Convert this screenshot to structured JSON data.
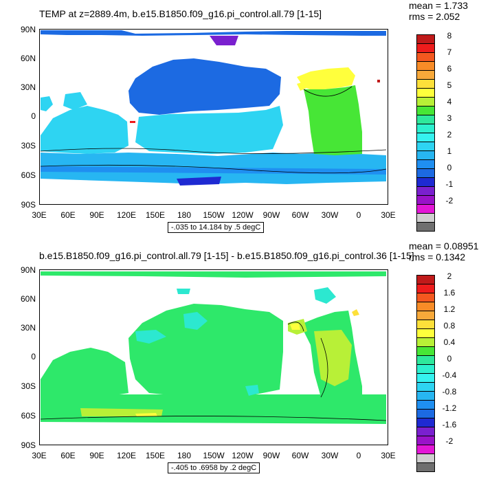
{
  "panels": [
    {
      "title": "TEMP at z=2889.4m, b.e15.B1850.f09_g16.pi_control.all.79 [1-15]",
      "mean": "mean = 1.733",
      "rms": "rms = 2.052",
      "contour_info": "-.035 to 14.184 by .5 degC",
      "lat_labels": [
        "90N",
        "60N",
        "30N",
        "0",
        "30S",
        "60S",
        "90S"
      ],
      "lon_labels": [
        "30E",
        "60E",
        "90E",
        "120E",
        "150E",
        "180",
        "150W",
        "120W",
        "90W",
        "60W",
        "30W",
        "0",
        "30E"
      ],
      "colorbar_labels": [
        "8",
        "7",
        "6",
        "5",
        "4",
        "3",
        "2",
        "1",
        "0",
        "-1",
        "-2"
      ],
      "colorbar_colors": [
        "#c01a1a",
        "#ee1c1c",
        "#f4581f",
        "#f88c27",
        "#f8a93a",
        "#fde03a",
        "#ffff3c",
        "#b8f037",
        "#47e636",
        "#2ee89c",
        "#2cf0cf",
        "#35f2f0",
        "#2ed4f2",
        "#27b6f2",
        "#1f8ff1",
        "#1c6ae2",
        "#1e2ad2",
        "#7a20cf",
        "#9a12c9",
        "#e316d6",
        "#cfcfcf",
        "#6f6f6f"
      ]
    },
    {
      "title": "b.e15.B1850.f09_g16.pi_control.all.79 [1-15] - b.e15.B1850.f09_g16.pi_control.36 [1-15]",
      "mean": "mean = 0.08951",
      "rms": "rms = 0.1342",
      "contour_info": "-.405 to .6958 by .2 degC",
      "lat_labels": [
        "90N",
        "60N",
        "30N",
        "0",
        "30S",
        "60S",
        "90S"
      ],
      "lon_labels": [
        "30E",
        "60E",
        "90E",
        "120E",
        "150E",
        "180",
        "150W",
        "120W",
        "90W",
        "60W",
        "30W",
        "0",
        "30E"
      ],
      "colorbar_labels": [
        "2",
        "1.6",
        "1.2",
        "0.8",
        "0.4",
        "0",
        "-0.4",
        "-0.8",
        "-1.2",
        "-1.6",
        "-2"
      ],
      "colorbar_colors": [
        "#c01a1a",
        "#ee1c1c",
        "#f4581f",
        "#f88c27",
        "#f8a93a",
        "#fde03a",
        "#ffff3c",
        "#b8f037",
        "#47e636",
        "#2ee89c",
        "#2cf0cf",
        "#35f2f0",
        "#2ed4f2",
        "#27b6f2",
        "#1f8ff1",
        "#1c6ae2",
        "#1e2ad2",
        "#7a20cf",
        "#9a12c9",
        "#e316d6",
        "#cfcfcf",
        "#6f6f6f"
      ]
    }
  ],
  "palette": {
    "top_fill_main": "#1c6ae2",
    "top_fill_light": "#2ed4f2",
    "top_fill_mid": "#27b6f2",
    "top_atlantic": "#47e636",
    "top_north_atl": "#ffff3c",
    "bottom_fill_main": "#2ee86a",
    "bottom_fill_pale": "#2ce8d0",
    "land": "#ffffff"
  }
}
